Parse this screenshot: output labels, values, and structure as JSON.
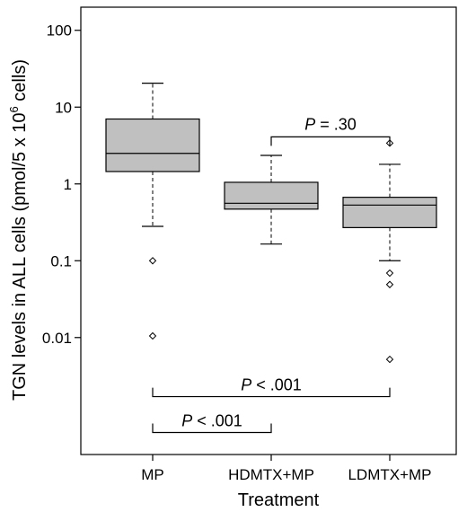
{
  "chart_data": {
    "type": "box",
    "title": "",
    "ylabel_main": "TGN levels in ALL cells (pmol/5 x 10",
    "ylabel_sup": "6",
    "ylabel_tail": " cells)",
    "xlabel": "Treatment",
    "yscale": "log",
    "ylim": [
      0.0003,
      200
    ],
    "yticks": [
      0.01,
      0.1,
      1,
      10,
      100
    ],
    "ytick_labels": [
      "0.01",
      "0.1",
      "1",
      "10",
      "100"
    ],
    "categories": [
      "MP",
      "HDMTX+MP",
      "LDMTX+MP"
    ],
    "boxes": [
      {
        "whisker_low": 0.28,
        "q1": 1.45,
        "median": 2.5,
        "q3": 7.0,
        "whisker_high": 20.5,
        "outliers": [
          0.1,
          0.0105
        ]
      },
      {
        "whisker_low": 0.165,
        "q1": 0.47,
        "median": 0.56,
        "q3": 1.05,
        "whisker_high": 2.35,
        "outliers": []
      },
      {
        "whisker_low": 0.1,
        "q1": 0.27,
        "median": 0.53,
        "q3": 0.67,
        "whisker_high": 1.8,
        "outliers": [
          3.4,
          0.069,
          0.049,
          0.0052
        ]
      }
    ],
    "box_color": "#c0c0c0",
    "comparisons": [
      {
        "from": 1,
        "to": 2,
        "label_p": "P",
        "label_rest": " = .30",
        "y": 4.1,
        "direction": "down"
      },
      {
        "from": 0,
        "to": 2,
        "label_p": "P",
        "label_rest": " < .001",
        "y": 0.0017,
        "direction": "up"
      },
      {
        "from": 0,
        "to": 1,
        "label_p": "P",
        "label_rest": " < .001",
        "y": 0.00058,
        "direction": "up"
      }
    ]
  }
}
